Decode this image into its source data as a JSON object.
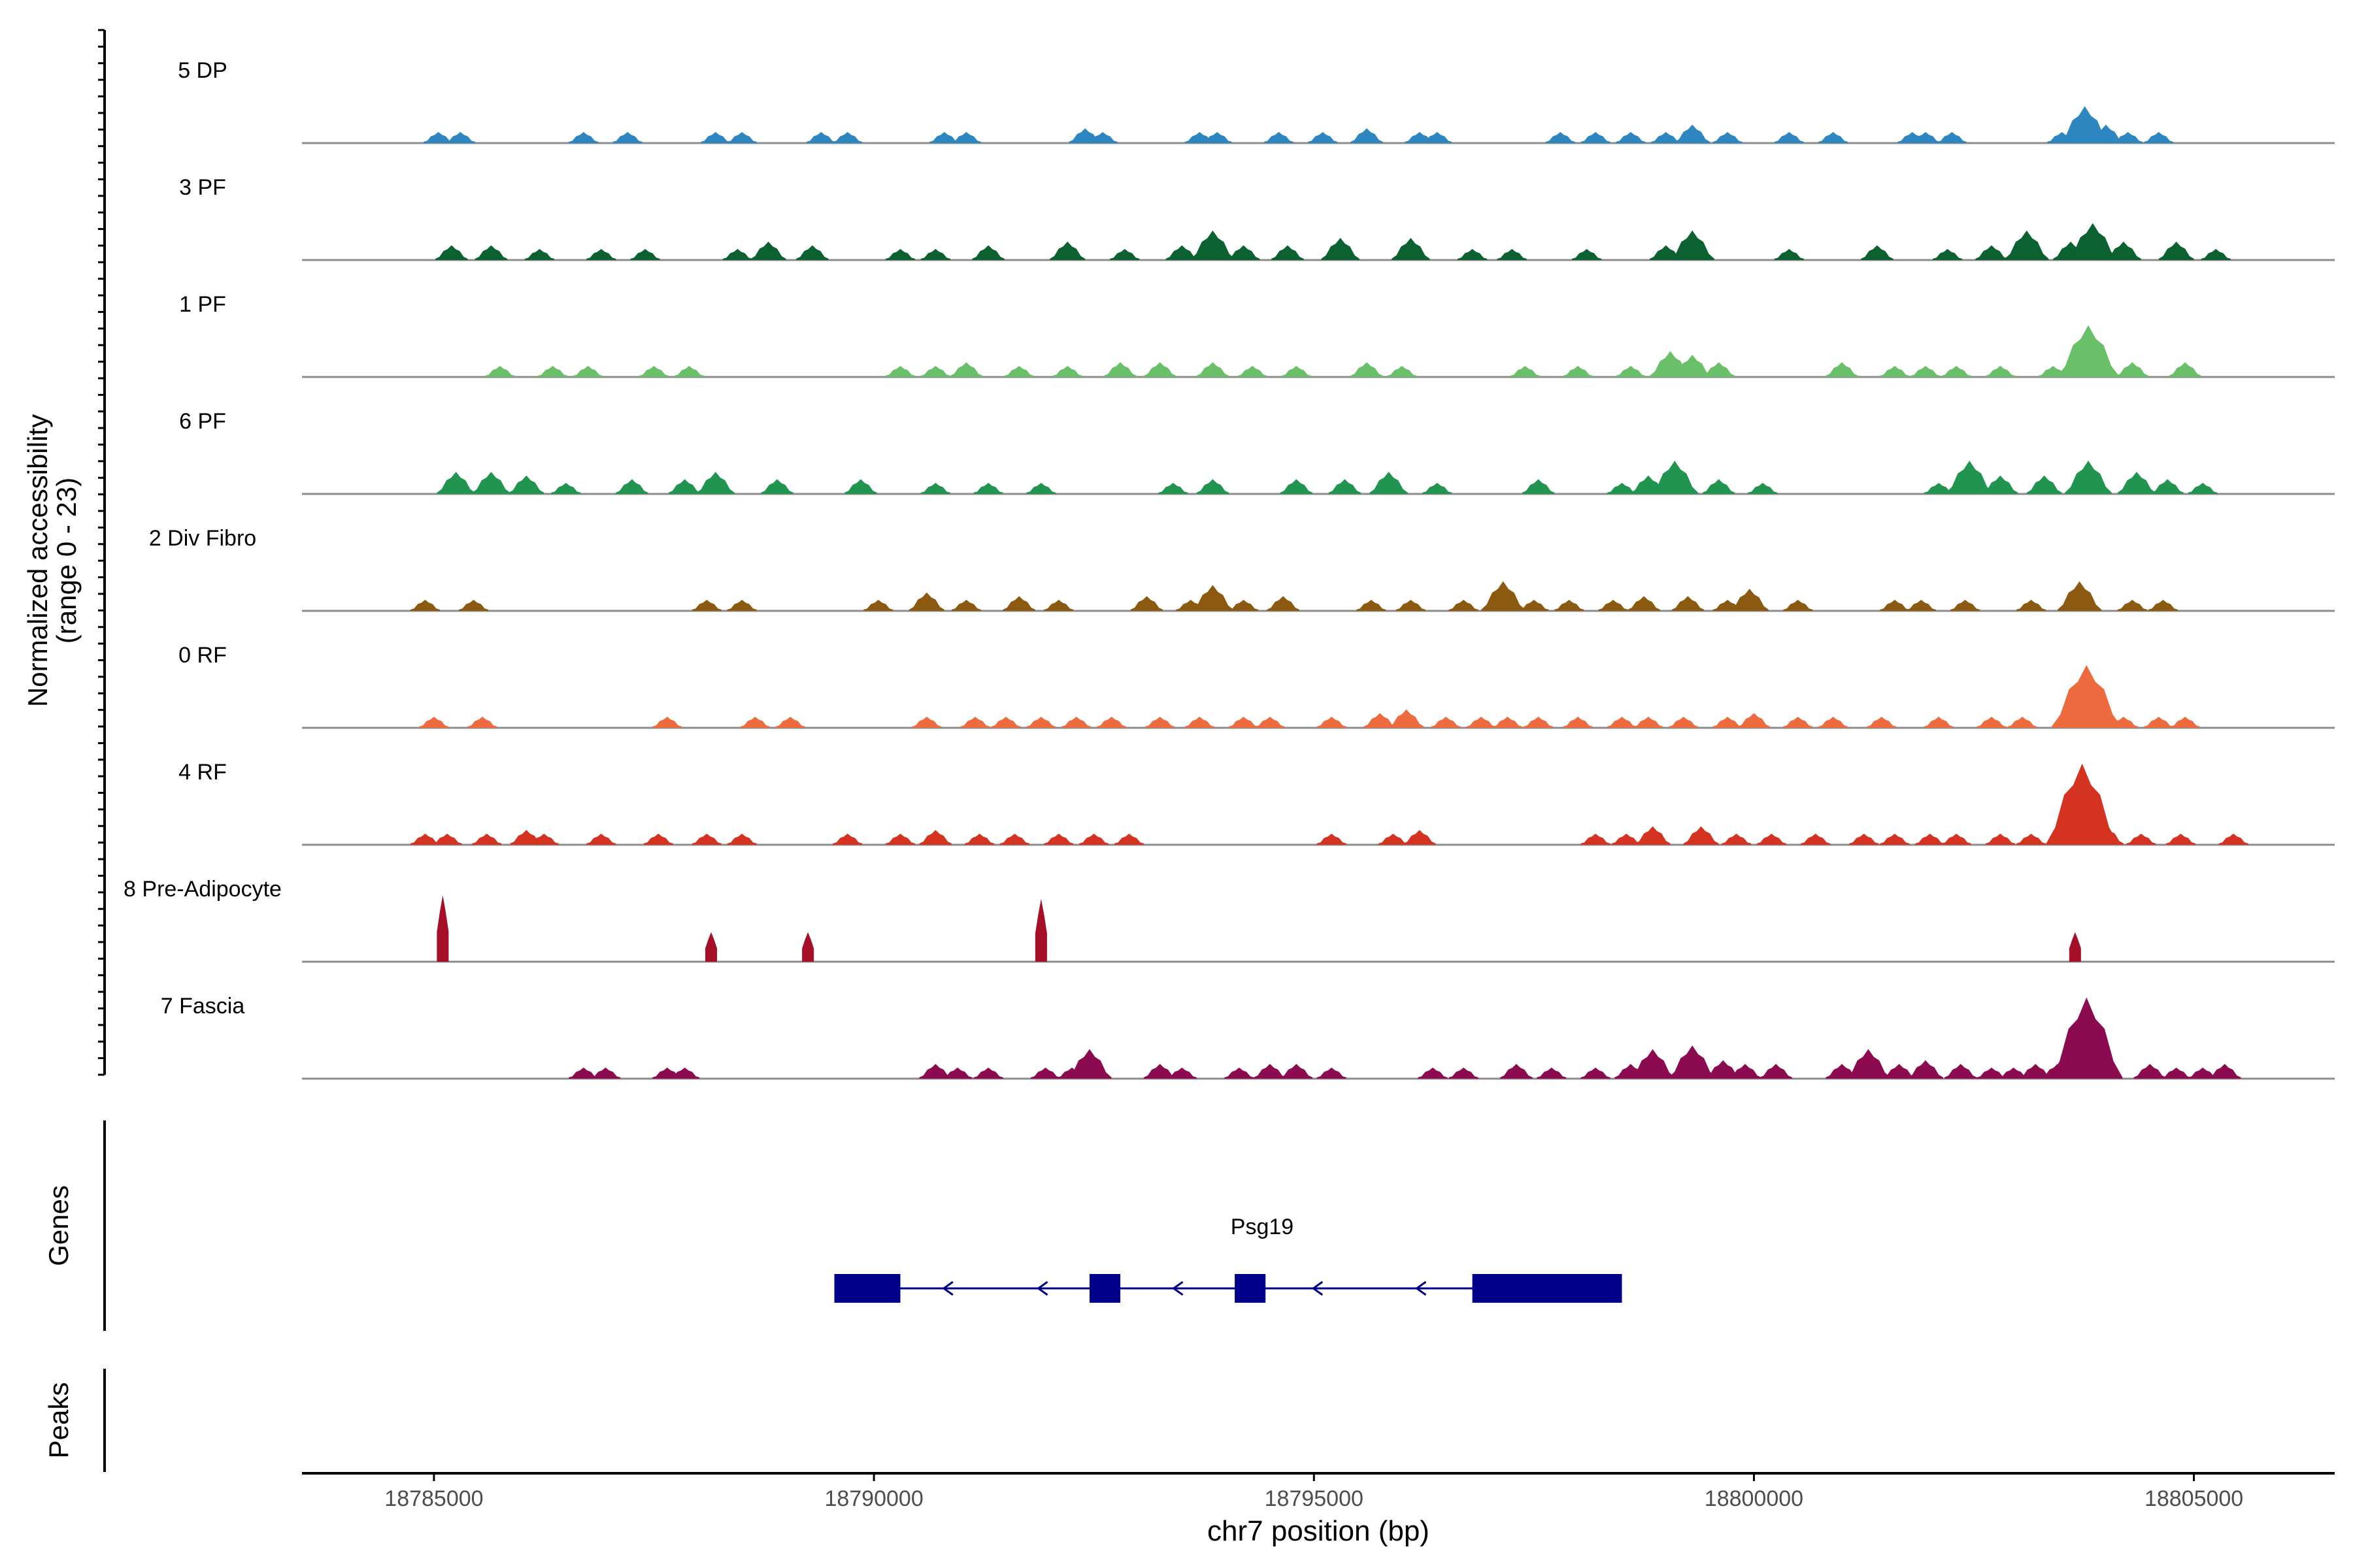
{
  "chart_data": {
    "type": "area",
    "title": "",
    "chromosome": "chr7",
    "xlabel": "chr7 position (bp)",
    "ylabel_line1": "Normalized accessibility",
    "ylabel_line2": "(range 0 - 23)",
    "y_range": [
      0,
      23
    ],
    "xlim": [
      18783500,
      18806600
    ],
    "x_ticks": [
      18785000,
      18790000,
      18795000,
      18800000,
      18805000
    ],
    "x_tick_labels": [
      "18785000",
      "18790000",
      "18795000",
      "18800000",
      "18805000"
    ],
    "panel_labels": {
      "genes": "Genes",
      "peaks": "Peaks"
    },
    "tracks": [
      {
        "name": "5 DP",
        "color": "#2E86C1",
        "peaks": [
          [
            18785050,
            3
          ],
          [
            18785300,
            3
          ],
          [
            18786700,
            3
          ],
          [
            18787200,
            3
          ],
          [
            18788200,
            3
          ],
          [
            18788500,
            3
          ],
          [
            18789400,
            3
          ],
          [
            18789700,
            3
          ],
          [
            18790800,
            3
          ],
          [
            18791050,
            3
          ],
          [
            18792400,
            4
          ],
          [
            18792600,
            3
          ],
          [
            18793700,
            3
          ],
          [
            18793900,
            3
          ],
          [
            18794600,
            3
          ],
          [
            18795100,
            3
          ],
          [
            18795600,
            4
          ],
          [
            18796200,
            3
          ],
          [
            18796400,
            3
          ],
          [
            18797800,
            3
          ],
          [
            18798200,
            3
          ],
          [
            18798600,
            3
          ],
          [
            18799000,
            3
          ],
          [
            18799300,
            5
          ],
          [
            18799700,
            3
          ],
          [
            18800400,
            3
          ],
          [
            18800900,
            3
          ],
          [
            18801800,
            3
          ],
          [
            18801950,
            3
          ],
          [
            18802250,
            3
          ],
          [
            18803500,
            3
          ],
          [
            18803760,
            10
          ],
          [
            18804000,
            5
          ],
          [
            18804250,
            3
          ],
          [
            18804600,
            3
          ]
        ]
      },
      {
        "name": "3 PF",
        "color": "#0B6130",
        "peaks": [
          [
            18785200,
            4
          ],
          [
            18785650,
            4
          ],
          [
            18786200,
            3
          ],
          [
            18786900,
            3
          ],
          [
            18787400,
            3
          ],
          [
            18788450,
            3
          ],
          [
            18788800,
            5
          ],
          [
            18789300,
            4
          ],
          [
            18790300,
            3
          ],
          [
            18790700,
            3
          ],
          [
            18791300,
            4
          ],
          [
            18792200,
            5
          ],
          [
            18792850,
            3
          ],
          [
            18793500,
            4
          ],
          [
            18793850,
            8
          ],
          [
            18794200,
            4
          ],
          [
            18794700,
            4
          ],
          [
            18795300,
            6
          ],
          [
            18796100,
            6
          ],
          [
            18796800,
            3
          ],
          [
            18797250,
            3
          ],
          [
            18798100,
            3
          ],
          [
            18799000,
            4
          ],
          [
            18799300,
            8
          ],
          [
            18800400,
            3
          ],
          [
            18801400,
            4
          ],
          [
            18802200,
            3
          ],
          [
            18802700,
            4
          ],
          [
            18803100,
            8
          ],
          [
            18803600,
            5
          ],
          [
            18803850,
            10
          ],
          [
            18804200,
            5
          ],
          [
            18804800,
            5
          ],
          [
            18805250,
            3
          ]
        ]
      },
      {
        "name": "1 PF",
        "color": "#6ABF69",
        "peaks": [
          [
            18785750,
            3
          ],
          [
            18786350,
            3
          ],
          [
            18786750,
            3
          ],
          [
            18787500,
            3
          ],
          [
            18787900,
            3
          ],
          [
            18790300,
            3
          ],
          [
            18790700,
            3
          ],
          [
            18791050,
            4
          ],
          [
            18791650,
            3
          ],
          [
            18792200,
            3
          ],
          [
            18792800,
            4
          ],
          [
            18793250,
            4
          ],
          [
            18793850,
            4
          ],
          [
            18794300,
            3
          ],
          [
            18794800,
            3
          ],
          [
            18795600,
            4
          ],
          [
            18796000,
            3
          ],
          [
            18797400,
            3
          ],
          [
            18798000,
            3
          ],
          [
            18798600,
            3
          ],
          [
            18799050,
            7
          ],
          [
            18799300,
            6
          ],
          [
            18799600,
            4
          ],
          [
            18801000,
            4
          ],
          [
            18801600,
            3
          ],
          [
            18801950,
            3
          ],
          [
            18802300,
            3
          ],
          [
            18802800,
            3
          ],
          [
            18803400,
            3
          ],
          [
            18803800,
            14
          ],
          [
            18804300,
            4
          ],
          [
            18804900,
            4
          ]
        ]
      },
      {
        "name": "6 PF",
        "color": "#21944F",
        "peaks": [
          [
            18785250,
            6
          ],
          [
            18785650,
            6
          ],
          [
            18786050,
            5
          ],
          [
            18786500,
            3
          ],
          [
            18787250,
            4
          ],
          [
            18787850,
            4
          ],
          [
            18788200,
            6
          ],
          [
            18788900,
            4
          ],
          [
            18789850,
            4
          ],
          [
            18790700,
            3
          ],
          [
            18791300,
            3
          ],
          [
            18791900,
            3
          ],
          [
            18793400,
            3
          ],
          [
            18793850,
            4
          ],
          [
            18794800,
            4
          ],
          [
            18795350,
            4
          ],
          [
            18795850,
            6
          ],
          [
            18796400,
            3
          ],
          [
            18797550,
            4
          ],
          [
            18798500,
            3
          ],
          [
            18798800,
            5
          ],
          [
            18799100,
            9
          ],
          [
            18799600,
            4
          ],
          [
            18800100,
            3
          ],
          [
            18802100,
            3
          ],
          [
            18802450,
            9
          ],
          [
            18802800,
            5
          ],
          [
            18803300,
            5
          ],
          [
            18803800,
            9
          ],
          [
            18804350,
            6
          ],
          [
            18804700,
            4
          ],
          [
            18805100,
            3
          ]
        ]
      },
      {
        "name": "2 Div Fibro",
        "color": "#8B5A10",
        "peaks": [
          [
            18784900,
            3
          ],
          [
            18785450,
            3
          ],
          [
            18788100,
            3
          ],
          [
            18788500,
            3
          ],
          [
            18790050,
            3
          ],
          [
            18790600,
            5
          ],
          [
            18791050,
            3
          ],
          [
            18791650,
            4
          ],
          [
            18792100,
            3
          ],
          [
            18793100,
            4
          ],
          [
            18793600,
            3
          ],
          [
            18793850,
            7
          ],
          [
            18794200,
            3
          ],
          [
            18794650,
            4
          ],
          [
            18795650,
            3
          ],
          [
            18796100,
            3
          ],
          [
            18796700,
            3
          ],
          [
            18797150,
            8
          ],
          [
            18797500,
            3
          ],
          [
            18797900,
            3
          ],
          [
            18798400,
            3
          ],
          [
            18798750,
            4
          ],
          [
            18799250,
            4
          ],
          [
            18799700,
            3
          ],
          [
            18799950,
            6
          ],
          [
            18800500,
            3
          ],
          [
            18801600,
            3
          ],
          [
            18801900,
            3
          ],
          [
            18802400,
            3
          ],
          [
            18803150,
            3
          ],
          [
            18803700,
            8
          ],
          [
            18804300,
            3
          ],
          [
            18804650,
            3
          ]
        ]
      },
      {
        "name": "0 RF",
        "color": "#EE6A3F",
        "peaks": [
          [
            18785000,
            3
          ],
          [
            18785550,
            3
          ],
          [
            18787650,
            3
          ],
          [
            18788650,
            3
          ],
          [
            18789050,
            3
          ],
          [
            18790600,
            3
          ],
          [
            18791150,
            3
          ],
          [
            18791500,
            3
          ],
          [
            18791900,
            3
          ],
          [
            18792300,
            3
          ],
          [
            18792700,
            3
          ],
          [
            18793250,
            3
          ],
          [
            18793700,
            3
          ],
          [
            18794200,
            3
          ],
          [
            18794500,
            3
          ],
          [
            18795200,
            3
          ],
          [
            18795750,
            4
          ],
          [
            18796050,
            5
          ],
          [
            18796500,
            3
          ],
          [
            18796900,
            3
          ],
          [
            18797200,
            3
          ],
          [
            18797550,
            3
          ],
          [
            18798000,
            3
          ],
          [
            18798500,
            3
          ],
          [
            18798800,
            3
          ],
          [
            18799200,
            3
          ],
          [
            18799700,
            3
          ],
          [
            18800000,
            4
          ],
          [
            18800500,
            3
          ],
          [
            18800900,
            3
          ],
          [
            18801450,
            3
          ],
          [
            18802100,
            3
          ],
          [
            18802700,
            3
          ],
          [
            18803050,
            3
          ],
          [
            18803780,
            17
          ],
          [
            18804200,
            3
          ],
          [
            18804600,
            3
          ],
          [
            18804900,
            3
          ]
        ]
      },
      {
        "name": "4 RF",
        "color": "#D53321",
        "peaks": [
          [
            18784900,
            3
          ],
          [
            18785150,
            3
          ],
          [
            18785600,
            3
          ],
          [
            18786050,
            4
          ],
          [
            18786250,
            3
          ],
          [
            18786900,
            3
          ],
          [
            18787550,
            3
          ],
          [
            18788100,
            3
          ],
          [
            18788500,
            3
          ],
          [
            18789700,
            3
          ],
          [
            18790300,
            3
          ],
          [
            18790700,
            4
          ],
          [
            18791200,
            3
          ],
          [
            18791600,
            3
          ],
          [
            18792100,
            3
          ],
          [
            18792500,
            3
          ],
          [
            18792900,
            3
          ],
          [
            18795200,
            3
          ],
          [
            18795900,
            3
          ],
          [
            18796200,
            4
          ],
          [
            18798200,
            3
          ],
          [
            18798550,
            3
          ],
          [
            18798850,
            5
          ],
          [
            18799400,
            5
          ],
          [
            18799800,
            3
          ],
          [
            18800200,
            3
          ],
          [
            18800700,
            3
          ],
          [
            18801250,
            3
          ],
          [
            18801600,
            3
          ],
          [
            18802000,
            3
          ],
          [
            18802300,
            3
          ],
          [
            18802800,
            3
          ],
          [
            18803150,
            3
          ],
          [
            18803730,
            22
          ],
          [
            18804000,
            5
          ],
          [
            18804400,
            3
          ],
          [
            18804850,
            3
          ],
          [
            18805450,
            3
          ]
        ]
      },
      {
        "name": "8 Pre-Adipocyte",
        "color": "#A50F27",
        "peaks": [
          [
            18785100,
            18
          ],
          [
            18788150,
            8
          ],
          [
            18789250,
            8
          ],
          [
            18791900,
            17
          ],
          [
            18803650,
            8
          ]
        ]
      },
      {
        "name": "7 Fascia",
        "color": "#8B0A50",
        "peaks": [
          [
            18786700,
            3
          ],
          [
            18786950,
            3
          ],
          [
            18787650,
            3
          ],
          [
            18787850,
            3
          ],
          [
            18790700,
            4
          ],
          [
            18790950,
            3
          ],
          [
            18791300,
            3
          ],
          [
            18791950,
            3
          ],
          [
            18792250,
            3
          ],
          [
            18792450,
            8
          ],
          [
            18793250,
            4
          ],
          [
            18793500,
            3
          ],
          [
            18794150,
            3
          ],
          [
            18794500,
            4
          ],
          [
            18794800,
            4
          ],
          [
            18795200,
            3
          ],
          [
            18796350,
            3
          ],
          [
            18796700,
            3
          ],
          [
            18797300,
            4
          ],
          [
            18797700,
            3
          ],
          [
            18798200,
            3
          ],
          [
            18798600,
            4
          ],
          [
            18798850,
            8
          ],
          [
            18799300,
            9
          ],
          [
            18799650,
            5
          ],
          [
            18799900,
            4
          ],
          [
            18800250,
            4
          ],
          [
            18801000,
            4
          ],
          [
            18801300,
            8
          ],
          [
            18801650,
            4
          ],
          [
            18801950,
            5
          ],
          [
            18802350,
            4
          ],
          [
            18802700,
            3
          ],
          [
            18802950,
            3
          ],
          [
            18803200,
            4
          ],
          [
            18803450,
            4
          ],
          [
            18803780,
            22
          ],
          [
            18804000,
            4
          ],
          [
            18804500,
            4
          ],
          [
            18804800,
            3
          ],
          [
            18805100,
            3
          ],
          [
            18805350,
            4
          ]
        ]
      }
    ],
    "gene": {
      "name": "Psg19",
      "strand": "-",
      "start": 18789550,
      "end": 18798500,
      "exons": [
        [
          18789550,
          18790300
        ],
        [
          18792450,
          18792800
        ],
        [
          18794100,
          18794450
        ],
        [
          18796800,
          18798500
        ]
      ],
      "color": "#00008B"
    }
  }
}
